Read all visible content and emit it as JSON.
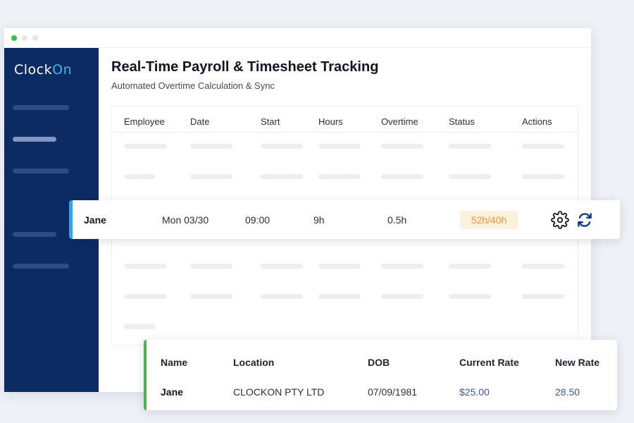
{
  "app": {
    "logo": {
      "text_main": "Clock",
      "text_accent": "On"
    },
    "title": "Real-Time Payroll & Timesheet Tracking",
    "subtitle": "Automated Overtime Calculation & Sync"
  },
  "timesheet": {
    "columns": [
      "Employee",
      "Date",
      "Start",
      "Hours",
      "Overtime",
      "Status",
      "Actions"
    ],
    "highlighted_row": {
      "employee": "Jane",
      "date": "Mon 03/30",
      "start": "09:00",
      "hours": "9h",
      "overtime": "0.5h",
      "status": "52h/40h"
    }
  },
  "detail": {
    "columns": [
      "Name",
      "Location",
      "DOB",
      "Current Rate",
      "New Rate"
    ],
    "row": {
      "name": "Jane",
      "location": "CLOCKON PTY LTD",
      "dob": "07/09/1981",
      "current_rate": "$25.00",
      "new_rate": "28.50"
    }
  },
  "icons": {
    "settings": "gear-icon",
    "sync": "refresh-icon"
  },
  "colors": {
    "sidebar": "#0c2b63",
    "accent_blue": "#3aa0e8",
    "accent_green": "#4bb34f",
    "status_badge_bg": "#fdf1dc",
    "status_badge_text": "#e79a2b",
    "rate_text": "#3a5a93"
  }
}
